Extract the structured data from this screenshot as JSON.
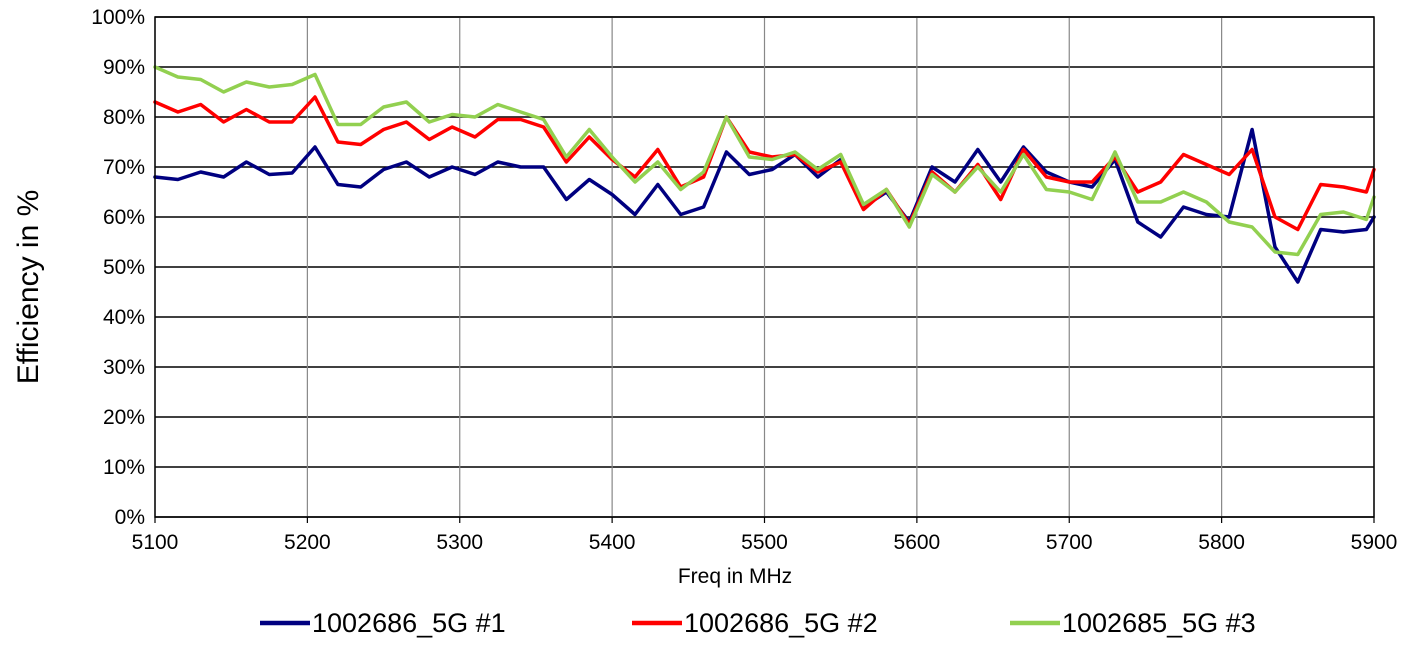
{
  "chart_data": {
    "type": "line",
    "xlabel": "Freq in MHz",
    "ylabel": "Efficiency in %",
    "xlim": [
      5100,
      5900
    ],
    "ylim": [
      0,
      100
    ],
    "x_ticks": [
      "5100",
      "5200",
      "5300",
      "5400",
      "5500",
      "5600",
      "5700",
      "5800",
      "5900"
    ],
    "y_ticks": [
      "0%",
      "10%",
      "20%",
      "30%",
      "40%",
      "50%",
      "60%",
      "70%",
      "80%",
      "90%",
      "100%"
    ],
    "grid": true,
    "legend_position": "bottom",
    "x": [
      5100,
      5115,
      5130,
      5145,
      5160,
      5175,
      5190,
      5205,
      5220,
      5235,
      5250,
      5265,
      5280,
      5295,
      5310,
      5325,
      5340,
      5355,
      5370,
      5385,
      5400,
      5415,
      5430,
      5445,
      5460,
      5475,
      5490,
      5505,
      5520,
      5535,
      5550,
      5565,
      5580,
      5595,
      5610,
      5625,
      5640,
      5655,
      5670,
      5685,
      5700,
      5715,
      5730,
      5745,
      5760,
      5775,
      5790,
      5805,
      5820,
      5835,
      5850,
      5865,
      5880,
      5895,
      5900
    ],
    "series": [
      {
        "name": "1002686_5G #1",
        "color": "#000080",
        "values": [
          68,
          67.5,
          69,
          68,
          71,
          68.5,
          68.8,
          74,
          66.5,
          66,
          69.5,
          71,
          68,
          70,
          68.5,
          71,
          70,
          70,
          63.5,
          67.5,
          64.5,
          60.5,
          66.5,
          60.5,
          62,
          73,
          68.5,
          69.5,
          72.5,
          68,
          71.5,
          62,
          65,
          59,
          70,
          67,
          73.5,
          67,
          74,
          69,
          67,
          66,
          71.5,
          59,
          56,
          62,
          60.5,
          60,
          77.5,
          54,
          47,
          57.5,
          57,
          57.5,
          60
        ]
      },
      {
        "name": "1002686_5G #2",
        "color": "#ff0000",
        "values": [
          83,
          81,
          82.5,
          79,
          81.5,
          79,
          79,
          84,
          75,
          74.5,
          77.5,
          79,
          75.5,
          78,
          76,
          79.5,
          79.5,
          78,
          71,
          76,
          71.5,
          68,
          73.5,
          66,
          68,
          80,
          73,
          72,
          72.5,
          69,
          71,
          61.5,
          65.5,
          58.5,
          69,
          65,
          70.5,
          63.5,
          73.5,
          68,
          67,
          67,
          72,
          65,
          67,
          72.5,
          70.5,
          68.5,
          73.5,
          60,
          57.5,
          66.5,
          66,
          65,
          69.5
        ]
      },
      {
        "name": "1002685_5G #3",
        "color": "#92d050",
        "values": [
          90,
          88,
          87.5,
          85,
          87,
          86,
          86.5,
          88.5,
          78.5,
          78.5,
          82,
          83,
          79,
          80.5,
          80,
          82.5,
          81,
          79.5,
          72,
          77.5,
          72,
          67,
          71,
          65.5,
          69,
          80,
          72,
          71.5,
          73,
          69.5,
          72.5,
          62.5,
          65.5,
          58,
          68.5,
          65,
          70,
          65,
          72.5,
          65.5,
          65,
          63.5,
          73,
          63,
          63,
          65,
          63,
          59,
          58,
          53,
          52.5,
          60.5,
          61,
          59.5,
          64
        ]
      }
    ]
  }
}
